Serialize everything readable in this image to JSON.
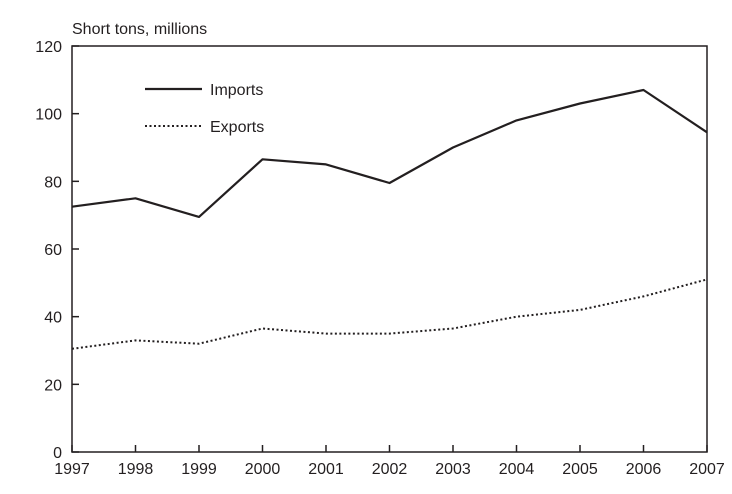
{
  "chart_data": {
    "type": "line",
    "ylabel": "Short tons, millions",
    "ylim": [
      0,
      120
    ],
    "yticks": [
      0,
      20,
      40,
      60,
      80,
      100,
      120
    ],
    "x": [
      "1997",
      "1998",
      "1999",
      "2000",
      "2001",
      "2002",
      "2003",
      "2004",
      "2005",
      "2006",
      "2007"
    ],
    "series": [
      {
        "name": "Imports",
        "style": "solid",
        "values": [
          72.5,
          75,
          69.5,
          86.5,
          85,
          79.5,
          90,
          98,
          103,
          107,
          94.5
        ]
      },
      {
        "name": "Exports",
        "style": "dotted",
        "values": [
          30.5,
          33,
          32,
          36.5,
          35,
          35,
          36.5,
          40,
          42,
          46,
          51
        ]
      }
    ],
    "legend_position": "top-left",
    "grid": false,
    "colors": {
      "line": "#231f20",
      "axis": "#231f20"
    }
  }
}
